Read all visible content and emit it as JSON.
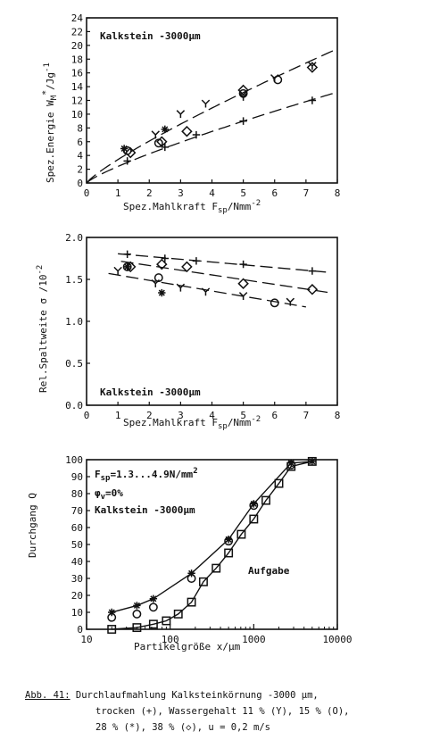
{
  "chart_data": [
    {
      "type": "line",
      "xlabel": "Spez.Mahlkraft F",
      "xlabel_sub": "sp",
      "xlabel_unit": "/Nmm",
      "xlabel_sup": "-2",
      "ylabel": "Spez.Energie W",
      "ylabel_sub": "M",
      "ylabel_sup": "*",
      "ylabel_unit": "/Jg",
      "ylabel_unit_sup": "-1",
      "annotation": "Kalkstein -3000µm",
      "xlim": [
        0,
        8
      ],
      "ylim": [
        0,
        24
      ],
      "xticks": [
        "0",
        "1",
        "2",
        "3",
        "4",
        "5",
        "6",
        "7",
        "8"
      ],
      "yticks": [
        "0",
        "2",
        "4",
        "6",
        "8",
        "10",
        "12",
        "14",
        "16",
        "18",
        "20",
        "22",
        "24"
      ],
      "series": [
        {
          "marker": "+",
          "x": [
            1.3,
            2.5,
            3.5,
            5.0,
            7.2
          ],
          "y": [
            3.2,
            5.2,
            7.0,
            9.0,
            12.0
          ]
        },
        {
          "marker": "Y",
          "x": [
            2.2,
            3.0,
            3.8,
            5.0,
            6.0,
            7.2
          ],
          "y": [
            7.0,
            10.0,
            11.5,
            12.5,
            15.2,
            17.0
          ]
        },
        {
          "marker": "O",
          "x": [
            1.3,
            2.3,
            5.0,
            6.1
          ],
          "y": [
            4.7,
            5.8,
            13.0,
            15.0
          ]
        },
        {
          "marker": "*",
          "x": [
            1.2,
            2.5
          ],
          "y": [
            5.0,
            7.8
          ]
        },
        {
          "marker": "D",
          "x": [
            1.4,
            2.4,
            3.2,
            5.0,
            7.2
          ],
          "y": [
            4.4,
            6.0,
            7.5,
            13.5,
            16.8
          ]
        }
      ]
    },
    {
      "type": "line",
      "xlabel": "Spez.Mahlkraft F",
      "xlabel_sub": "sp",
      "xlabel_unit": "/Nmm",
      "xlabel_sup": "-2",
      "ylabel": "Rel.Spaltweite σ /10",
      "ylabel_sup": "-2",
      "annotation": "Kalkstein -3000µm",
      "xlim": [
        0,
        8
      ],
      "ylim": [
        0,
        2.0
      ],
      "xticks": [
        "0",
        "1",
        "2",
        "3",
        "4",
        "5",
        "6",
        "7",
        "8"
      ],
      "yticks": [
        "0.0",
        "0.5",
        "1.0",
        "1.5",
        "2.0"
      ],
      "series": [
        {
          "marker": "+",
          "x": [
            1.3,
            2.5,
            3.5,
            5.0,
            7.2
          ],
          "y": [
            1.8,
            1.75,
            1.72,
            1.68,
            1.6
          ]
        },
        {
          "marker": "Y",
          "x": [
            1.0,
            2.2,
            3.0,
            3.8,
            5.0,
            6.5
          ],
          "y": [
            1.6,
            1.45,
            1.4,
            1.35,
            1.3,
            1.23
          ]
        },
        {
          "marker": "O",
          "x": [
            1.3,
            2.3,
            6.0
          ],
          "y": [
            1.65,
            1.52,
            1.22
          ]
        },
        {
          "marker": "*",
          "x": [
            1.3,
            2.4
          ],
          "y": [
            1.65,
            1.34
          ]
        },
        {
          "marker": "D",
          "x": [
            1.4,
            2.4,
            3.2,
            5.0,
            7.2
          ],
          "y": [
            1.65,
            1.68,
            1.65,
            1.45,
            1.38
          ]
        }
      ]
    },
    {
      "type": "line",
      "xscale": "log",
      "xlabel": "Partikelgröße x/µm",
      "ylabel": "Durchgang Q",
      "xlim": [
        10,
        10000
      ],
      "ylim": [
        0,
        100
      ],
      "xticks": [
        "10",
        "100",
        "1000",
        "10000"
      ],
      "yticks": [
        "0",
        "10",
        "20",
        "30",
        "40",
        "50",
        "60",
        "70",
        "80",
        "90",
        "100"
      ],
      "annotation_lines": [
        {
          "main": "F",
          "sub": "sp",
          "rest": "=1.3...4.9N/mm",
          "sup": "2"
        },
        {
          "main": "φ",
          "sub": "v",
          "rest": "=0%",
          "sup": ""
        },
        {
          "main": "Kalkstein -3000µm",
          "sub": "",
          "rest": "",
          "sup": ""
        }
      ],
      "curve_label": "Aufgabe",
      "series": [
        {
          "name": "Aufgabe",
          "marker": "S",
          "x": [
            20,
            40,
            63,
            90,
            125,
            180,
            250,
            355,
            500,
            710,
            1000,
            1400,
            2000,
            2800,
            5000
          ],
          "y": [
            0,
            1,
            3,
            5,
            9,
            16,
            28,
            36,
            45,
            56,
            65,
            76,
            86,
            96,
            99
          ]
        },
        {
          "marker": "O",
          "x": [
            20,
            40,
            63,
            180,
            500,
            1000,
            2800
          ],
          "y": [
            7,
            9,
            13,
            30,
            52,
            73,
            97
          ]
        },
        {
          "marker": "*",
          "x": [
            20,
            40,
            63,
            180,
            500,
            1000,
            2800,
            5000
          ],
          "y": [
            10,
            14,
            18,
            33,
            53,
            74,
            98,
            99
          ]
        }
      ]
    }
  ],
  "caption": {
    "label": "Abb. 41:",
    "line1": " Durchlaufmahlung Kalksteinkörnung -3000 µm,",
    "line2": "trocken (+), Wassergehalt 11 % (Y), 15 % (O),",
    "line3": "28 % (*), 38 % (◇),  u = 0,2 m/s"
  }
}
